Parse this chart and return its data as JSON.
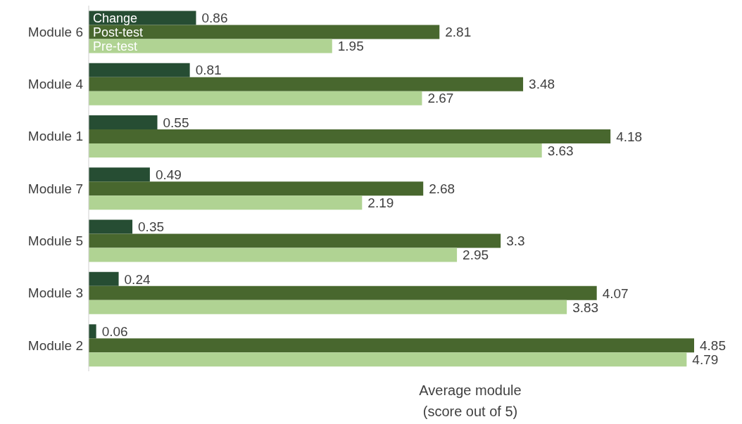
{
  "chart_data": {
    "type": "bar",
    "orientation": "horizontal",
    "xlabel": "Average module\n(score out of 5)",
    "categories": [
      "Module 6",
      "Module 4",
      "Module 1",
      "Module 7",
      "Module 5",
      "Module 3",
      "Module 2"
    ],
    "series": [
      {
        "name": "Change",
        "color": "#264d33",
        "values": [
          0.86,
          0.81,
          0.55,
          0.49,
          0.35,
          0.24,
          0.06
        ]
      },
      {
        "name": "Post-test",
        "color": "#48672e",
        "values": [
          2.81,
          3.48,
          4.18,
          2.68,
          3.3,
          4.07,
          4.85
        ]
      },
      {
        "name": "Pre-test",
        "color": "#b0d393",
        "values": [
          1.95,
          2.67,
          3.63,
          2.19,
          2.95,
          3.83,
          4.79
        ]
      }
    ],
    "data_labels": true,
    "grid": false,
    "legend": false
  }
}
